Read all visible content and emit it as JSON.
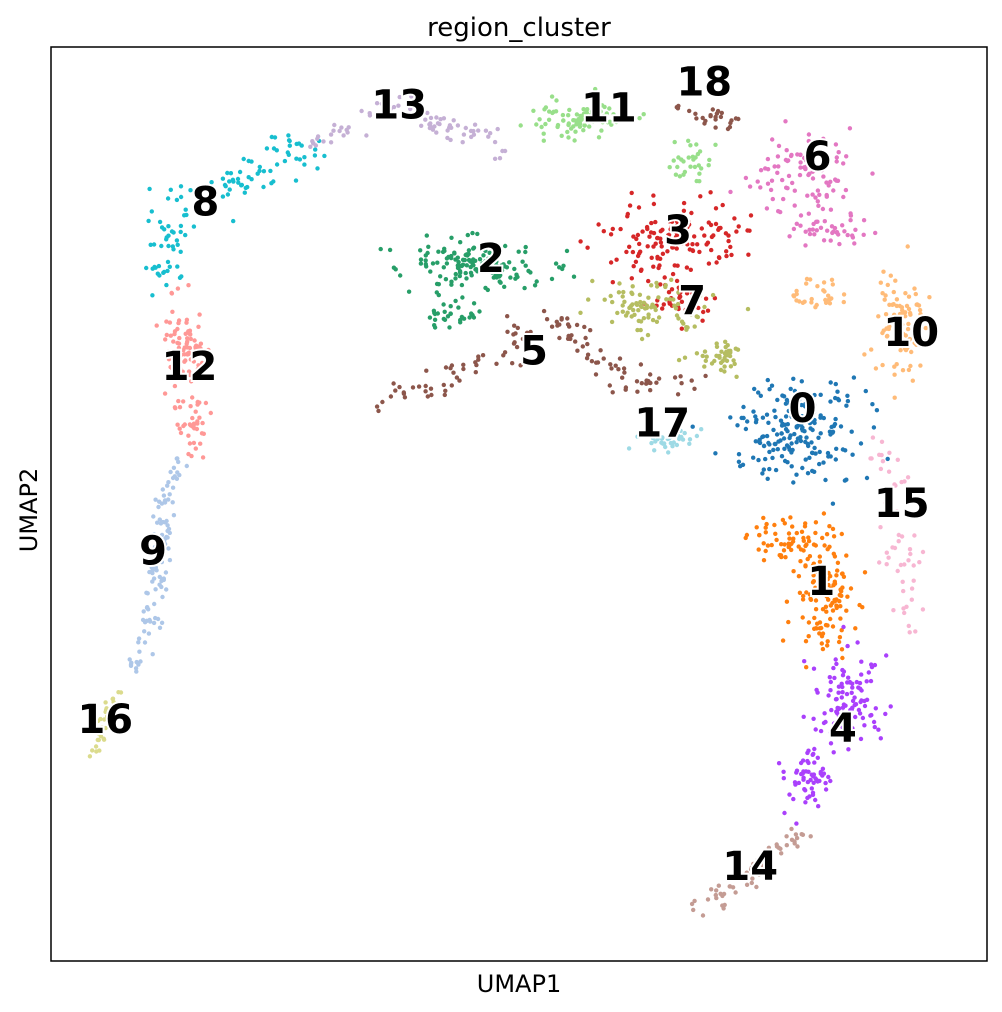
{
  "chart_data": {
    "type": "scatter",
    "title": "region_cluster",
    "xlabel": "UMAP1",
    "ylabel": "UMAP2",
    "xlim": [
      0,
      100
    ],
    "ylim": [
      0,
      100
    ],
    "grid": false,
    "legend": "on data",
    "clusters": [
      {
        "name": "0",
        "color": "#1f77b4",
        "x": 80.3,
        "y": 60.5
      },
      {
        "name": "1",
        "color": "#ff7f0e",
        "x": 82.3,
        "y": 41.6
      },
      {
        "name": "2",
        "color": "#279e68",
        "x": 47.0,
        "y": 76.9
      },
      {
        "name": "3",
        "color": "#d62728",
        "x": 67.0,
        "y": 80.0
      },
      {
        "name": "4",
        "color": "#aa40fc",
        "x": 84.6,
        "y": 25.5
      },
      {
        "name": "5",
        "color": "#8c564b",
        "x": 51.6,
        "y": 66.8
      },
      {
        "name": "6",
        "color": "#e377c2",
        "x": 81.9,
        "y": 88.1
      },
      {
        "name": "7",
        "color": "#b5bd61",
        "x": 68.5,
        "y": 72.3
      },
      {
        "name": "8",
        "color": "#17becf",
        "x": 16.5,
        "y": 83.1
      },
      {
        "name": "9",
        "color": "#aec7e8",
        "x": 10.9,
        "y": 44.9
      },
      {
        "name": "10",
        "color": "#ffbb78",
        "x": 91.9,
        "y": 68.8
      },
      {
        "name": "11",
        "color": "#98df8a",
        "x": 59.6,
        "y": 93.4
      },
      {
        "name": "12",
        "color": "#ff9896",
        "x": 14.8,
        "y": 65.1
      },
      {
        "name": "13",
        "color": "#c5b0d5",
        "x": 37.2,
        "y": 93.7
      },
      {
        "name": "14",
        "color": "#c49c94",
        "x": 74.7,
        "y": 10.4
      },
      {
        "name": "15",
        "color": "#f7b6d2",
        "x": 90.9,
        "y": 50.1
      },
      {
        "name": "16",
        "color": "#dbdb8d",
        "x": 5.8,
        "y": 26.5
      },
      {
        "name": "17",
        "color": "#9edae5",
        "x": 65.3,
        "y": 58.9
      },
      {
        "name": "18",
        "color": "#8c564b",
        "x": 69.8,
        "y": 96.2
      }
    ]
  }
}
